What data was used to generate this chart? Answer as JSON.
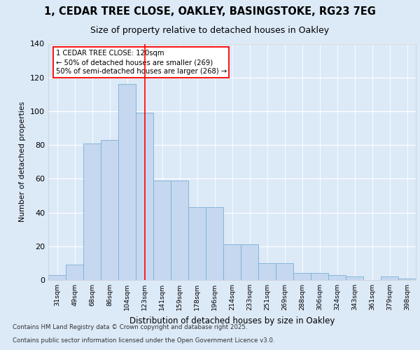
{
  "title_line1": "1, CEDAR TREE CLOSE, OAKLEY, BASINGSTOKE, RG23 7EG",
  "title_line2": "Size of property relative to detached houses in Oakley",
  "xlabel": "Distribution of detached houses by size in Oakley",
  "ylabel": "Number of detached properties",
  "categories": [
    "31sqm",
    "49sqm",
    "68sqm",
    "86sqm",
    "104sqm",
    "123sqm",
    "141sqm",
    "159sqm",
    "178sqm",
    "196sqm",
    "214sqm",
    "233sqm",
    "251sqm",
    "269sqm",
    "288sqm",
    "306sqm",
    "324sqm",
    "343sqm",
    "361sqm",
    "379sqm",
    "398sqm"
  ],
  "values": [
    3,
    9,
    81,
    83,
    116,
    99,
    59,
    59,
    43,
    43,
    21,
    21,
    10,
    10,
    4,
    4,
    3,
    2,
    0,
    2,
    1
  ],
  "bar_color": "#c5d8f0",
  "bar_edge_color": "#7aafd4",
  "annotation_text": "1 CEDAR TREE CLOSE: 120sqm\n← 50% of detached houses are smaller (269)\n50% of semi-detached houses are larger (268) →",
  "footer_line1": "Contains HM Land Registry data © Crown copyright and database right 2025.",
  "footer_line2": "Contains public sector information licensed under the Open Government Licence v3.0.",
  "bg_color": "#dce9f7",
  "plot_bg_color": "#dce9f7",
  "ylim": [
    0,
    140
  ],
  "yticks": [
    0,
    20,
    40,
    60,
    80,
    100,
    120,
    140
  ],
  "red_line_index": 5
}
